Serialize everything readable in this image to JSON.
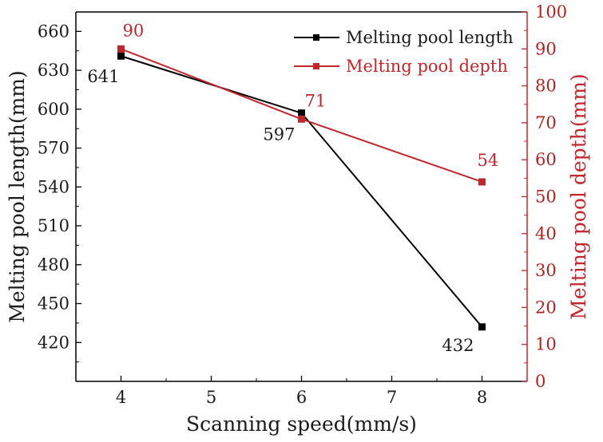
{
  "chart_data": {
    "type": "line",
    "title": "",
    "x": [
      4,
      6,
      8
    ],
    "xlabel": "Scanning speed(mm/s)",
    "xlim": [
      3.5,
      8.5
    ],
    "xticks": [
      4,
      5,
      6,
      7,
      8
    ],
    "xtick_labels": [
      "4",
      "5",
      "6",
      "7",
      "8"
    ],
    "ylabel_left": "Melting pool length(mm)",
    "ylim_left": [
      390,
      675
    ],
    "yticks_left": [
      420,
      450,
      480,
      510,
      540,
      570,
      600,
      630,
      660
    ],
    "ytick_labels_left": [
      "420",
      "450",
      "480",
      "510",
      "540",
      "570",
      "600",
      "630",
      "660"
    ],
    "ylabel_right": "Melting pool depth(mm)",
    "ylim_right": [
      0,
      100
    ],
    "yticks_right": [
      0,
      10,
      20,
      30,
      40,
      50,
      60,
      70,
      80,
      90,
      100
    ],
    "ytick_labels_right": [
      "0",
      "10",
      "20",
      "30",
      "40",
      "50",
      "60",
      "70",
      "80",
      "90",
      "100"
    ],
    "legend_position": "top-right",
    "grid": false,
    "series": [
      {
        "name": "Melting pool length",
        "axis": "left",
        "color": "#000000",
        "values": [
          641,
          597,
          432
        ],
        "labels": [
          "641",
          "597",
          "432"
        ]
      },
      {
        "name": "Melting pool depth",
        "axis": "right",
        "color": "#c0272d",
        "values": [
          90,
          71,
          54
        ],
        "labels": [
          "90",
          "71",
          "54"
        ]
      }
    ]
  }
}
